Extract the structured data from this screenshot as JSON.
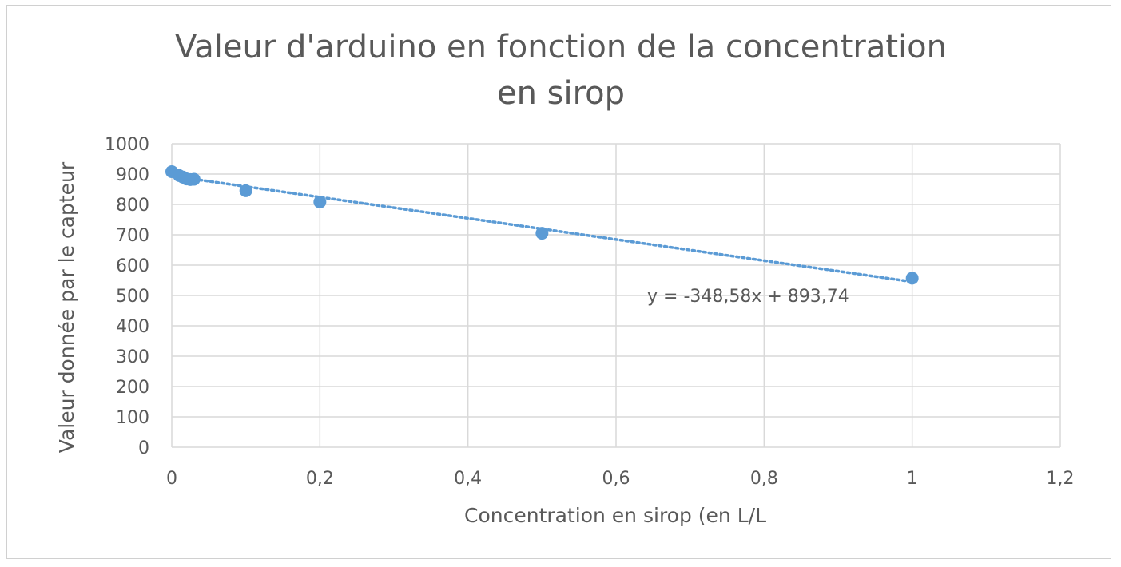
{
  "chart_data": {
    "type": "scatter",
    "title_lines": [
      "Valeur d'arduino en fonction de la concentration",
      "en sirop"
    ],
    "xlabel": "Concentration en sirop (en L/L",
    "ylabel": "Valeur donnée  par le capteur",
    "xlim": [
      0,
      1.2
    ],
    "ylim": [
      0,
      1000
    ],
    "x_ticks": [
      0,
      0.2,
      0.4,
      0.6,
      0.8,
      1,
      1.2
    ],
    "x_tick_labels": [
      "0",
      "0,2",
      "0,4",
      "0,6",
      "0,8",
      "1",
      "1,2"
    ],
    "y_ticks": [
      0,
      100,
      200,
      300,
      400,
      500,
      600,
      700,
      800,
      900,
      1000
    ],
    "y_tick_labels": [
      "0",
      "100",
      "200",
      "300",
      "400",
      "500",
      "600",
      "700",
      "800",
      "900",
      "1000"
    ],
    "grid": true,
    "series": [
      {
        "color": "#5b9bd5",
        "points": [
          {
            "x": 0,
            "y": 908
          },
          {
            "x": 0.01,
            "y": 895
          },
          {
            "x": 0.015,
            "y": 890
          },
          {
            "x": 0.02,
            "y": 884
          },
          {
            "x": 0.025,
            "y": 882
          },
          {
            "x": 0.03,
            "y": 883
          },
          {
            "x": 0.1,
            "y": 845
          },
          {
            "x": 0.2,
            "y": 808
          },
          {
            "x": 0.5,
            "y": 705
          },
          {
            "x": 1,
            "y": 557
          }
        ]
      }
    ],
    "trendline": {
      "type": "linear",
      "slope": -348.58,
      "intercept": 893.74,
      "x_range": [
        0,
        1
      ],
      "style": "dotted",
      "color": "#5b9bd5",
      "equation_label": "y = -348,58x + 893,74"
    },
    "gridline_color": "#d9d9d9"
  }
}
